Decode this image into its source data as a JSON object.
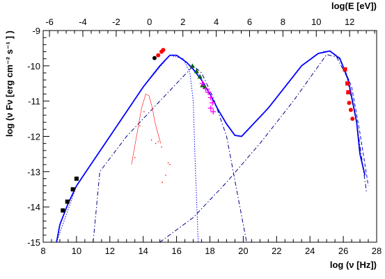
{
  "chart_data": {
    "type": "scatter",
    "xlabel": "log (ν [Hz])",
    "ylabel": "log (ν Fν [erg cm⁻² s⁻¹ ] )",
    "top_xlabel": "log(E [eV])",
    "xlim": [
      8,
      28
    ],
    "ylim": [
      -15,
      -9
    ],
    "top_xlim": [
      -6.38,
      13.62
    ],
    "x_ticks": [
      8,
      10,
      12,
      14,
      16,
      18,
      20,
      22,
      24,
      26,
      28
    ],
    "y_ticks": [
      -15,
      -14,
      -13,
      -12,
      -11,
      -10,
      -9
    ],
    "top_ticks": [
      -6,
      -4,
      -2,
      0,
      2,
      4,
      6,
      8,
      10,
      12
    ],
    "grid": false,
    "legend": "none",
    "colors": {
      "model": "#0000ff",
      "host_galaxy": "#ff0000",
      "radio": "#000000",
      "optical_uv": "#ff0000",
      "swift_xrt": "#ff00ff",
      "rxte": "#006400",
      "gamma": "#ff0000"
    },
    "series": [
      {
        "style": "solid",
        "color": "#0000ff",
        "points": [
          [
            8.8,
            -15.0
          ],
          [
            9.0,
            -14.5
          ],
          [
            9.5,
            -13.9
          ],
          [
            10,
            -13.4
          ],
          [
            11,
            -12.7
          ],
          [
            12,
            -12.0
          ],
          [
            13,
            -11.3
          ],
          [
            14,
            -10.6
          ],
          [
            15,
            -10.0
          ],
          [
            15.6,
            -9.7
          ],
          [
            16,
            -9.7
          ],
          [
            16.6,
            -9.9
          ],
          [
            17,
            -10.1
          ],
          [
            17.5,
            -10.4
          ],
          [
            18,
            -10.8
          ],
          [
            18.5,
            -11.25
          ],
          [
            19,
            -11.65
          ],
          [
            19.5,
            -11.97
          ],
          [
            19.9,
            -12.0
          ],
          [
            20.5,
            -11.7
          ],
          [
            21.5,
            -11.2
          ],
          [
            22.5,
            -10.6
          ],
          [
            23.5,
            -10.0
          ],
          [
            24.5,
            -9.65
          ],
          [
            25.2,
            -9.58
          ],
          [
            25.8,
            -9.8
          ],
          [
            26.3,
            -10.4
          ],
          [
            26.8,
            -11.6
          ],
          [
            27.0,
            -12.5
          ],
          [
            27.3,
            -13.1
          ]
        ]
      },
      {
        "style": "dotted",
        "color": "#0000ff",
        "points": [
          [
            8.8,
            -15.0
          ],
          [
            10,
            -13.4
          ],
          [
            12,
            -12.0
          ],
          [
            14,
            -10.6
          ],
          [
            15.6,
            -9.7
          ],
          [
            16.4,
            -9.8
          ],
          [
            16.8,
            -10.2
          ],
          [
            17.0,
            -11.0
          ],
          [
            17.1,
            -12.5
          ],
          [
            17.3,
            -15.0
          ]
        ]
      },
      {
        "style": "dash-dot",
        "color": "#00008b",
        "points": [
          [
            11.0,
            -15.0
          ],
          [
            11.4,
            -13.0
          ],
          [
            13,
            -12.0
          ],
          [
            15,
            -11.0
          ],
          [
            16,
            -10.5
          ],
          [
            17,
            -10.0
          ],
          [
            17.5,
            -10.2
          ],
          [
            18.2,
            -10.9
          ],
          [
            19,
            -12.0
          ],
          [
            19.6,
            -13.5
          ],
          [
            20.2,
            -15.0
          ]
        ]
      },
      {
        "style": "dash-dot",
        "color": "#00008b",
        "points": [
          [
            15.0,
            -15.0
          ],
          [
            17,
            -14.3
          ],
          [
            19,
            -13.3
          ],
          [
            21,
            -12.2
          ],
          [
            23,
            -11.0
          ],
          [
            25.0,
            -9.68
          ],
          [
            25.6,
            -9.75
          ],
          [
            26.2,
            -10.3
          ],
          [
            26.8,
            -11.6
          ],
          [
            27.4,
            -13.6
          ]
        ]
      },
      {
        "style": "dashed",
        "color": "#0000ff",
        "points": [
          [
            24.8,
            -9.6
          ],
          [
            25.2,
            -9.58
          ],
          [
            25.8,
            -9.78
          ],
          [
            26.5,
            -10.6
          ],
          [
            27.0,
            -11.9
          ],
          [
            27.5,
            -13.4
          ]
        ]
      },
      {
        "name": "",
        "style": "thin",
        "color": "#ff0000",
        "points": [
          [
            13.3,
            -12.8
          ],
          [
            13.6,
            -12.0
          ],
          [
            13.9,
            -11.2
          ],
          [
            14.15,
            -10.8
          ],
          [
            14.35,
            -10.85
          ],
          [
            14.55,
            -11.2
          ],
          [
            14.7,
            -11.6
          ],
          [
            14.9,
            -11.95
          ],
          [
            15.05,
            -12.2
          ]
        ]
      }
    ],
    "points": [
      {
        "group": "radio",
        "marker": "square",
        "color": "#000000",
        "x": 9.18,
        "y": -14.1
      },
      {
        "group": "radio",
        "marker": "square",
        "color": "#000000",
        "x": 9.45,
        "y": -13.85
      },
      {
        "group": "radio",
        "marker": "square",
        "color": "#000000",
        "x": 9.78,
        "y": -13.5
      },
      {
        "group": "radio",
        "marker": "square",
        "color": "#000000",
        "x": 10.0,
        "y": -13.2
      },
      {
        "group": "optical",
        "marker": "circle",
        "color": "#000000",
        "x": 14.68,
        "y": -9.78
      },
      {
        "group": "optical",
        "marker": "circle",
        "color": "#ff0000",
        "x": 14.9,
        "y": -9.7
      },
      {
        "group": "optical",
        "marker": "circle",
        "color": "#ff0000",
        "x": 15.1,
        "y": -9.6
      },
      {
        "group": "optical",
        "marker": "circle",
        "color": "#ff0000",
        "x": 15.2,
        "y": -9.55
      },
      {
        "group": "rxte",
        "marker": "triangle",
        "color": "#006400",
        "x": 16.95,
        "y": -10.0
      },
      {
        "group": "rxte",
        "marker": "triangle",
        "color": "#006400",
        "x": 17.2,
        "y": -10.15
      },
      {
        "group": "rxte",
        "marker": "triangle",
        "color": "#006400",
        "x": 17.4,
        "y": -10.3
      },
      {
        "group": "rxte",
        "marker": "triangle",
        "color": "#006400",
        "x": 17.55,
        "y": -10.55
      },
      {
        "group": "rxte",
        "marker": "triangle",
        "color": "#006400",
        "x": 17.7,
        "y": -10.6
      },
      {
        "group": "xrt",
        "marker": "cross",
        "color": "#ff00ff",
        "x": 17.55,
        "y": -10.5
      },
      {
        "group": "xrt",
        "marker": "cross",
        "color": "#ff00ff",
        "x": 17.75,
        "y": -10.65
      },
      {
        "group": "xrt",
        "marker": "cross",
        "color": "#ff00ff",
        "x": 17.9,
        "y": -10.75
      },
      {
        "group": "xrt",
        "marker": "cross",
        "color": "#ff00ff",
        "x": 18.05,
        "y": -10.9
      },
      {
        "group": "xrt",
        "marker": "cross",
        "color": "#ff00ff",
        "x": 18.15,
        "y": -11.05
      },
      {
        "group": "xrt",
        "marker": "cross",
        "color": "#ff00ff",
        "x": 18.2,
        "y": -11.3
      },
      {
        "group": "xrt",
        "marker": "cross",
        "color": "#ff00ff",
        "x": 18.05,
        "y": -11.2
      },
      {
        "group": "gamma",
        "marker": "square",
        "color": "#ff0000",
        "x": 26.1,
        "y": -10.1
      },
      {
        "group": "gamma",
        "marker": "square",
        "color": "#ff0000",
        "x": 26.25,
        "y": -10.5
      },
      {
        "group": "gamma",
        "marker": "square",
        "color": "#ff0000",
        "x": 26.3,
        "y": -10.75
      },
      {
        "group": "gamma",
        "marker": "circle",
        "color": "#ff0000",
        "x": 26.35,
        "y": -11.05
      },
      {
        "group": "gamma",
        "marker": "circle",
        "color": "#ff0000",
        "x": 26.45,
        "y": -11.25
      },
      {
        "group": "gamma",
        "marker": "circle",
        "color": "#ff0000",
        "x": 26.55,
        "y": -11.5
      }
    ],
    "host_scatter": [
      [
        13.5,
        -12.6
      ],
      [
        13.8,
        -11.7
      ],
      [
        14.05,
        -11.3
      ],
      [
        14.5,
        -12.1
      ],
      [
        14.75,
        -12.2
      ],
      [
        14.9,
        -12.15
      ],
      [
        15.1,
        -12.3
      ],
      [
        15.5,
        -12.75
      ],
      [
        15.6,
        -12.8
      ],
      [
        15.15,
        -13.3
      ],
      [
        15.35,
        -13.1
      ]
    ]
  }
}
